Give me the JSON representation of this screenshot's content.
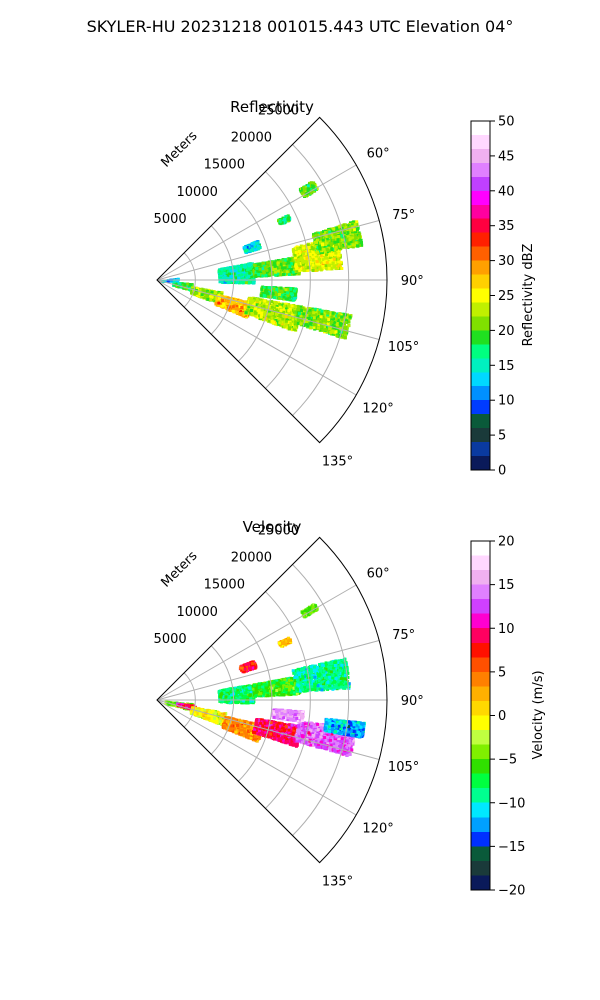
{
  "figure_title": "SKYLER-HU  20231218  001015.443 UTC Elevation 04°",
  "chart_data": [
    {
      "type": "polar-sector",
      "title": "Reflectivity",
      "radial_axis_label": "Meters",
      "radial_ticks": [
        "5000",
        "10000",
        "15000",
        "20000",
        "25000"
      ],
      "radial_tick_values": [
        5000,
        10000,
        15000,
        20000,
        25000
      ],
      "rmax": 30000,
      "theta_range_deg": [
        45,
        135
      ],
      "theta_ticks": [
        "60°",
        "75°",
        "90°",
        "105°",
        "120°",
        "135°"
      ],
      "theta_tick_values": [
        60,
        75,
        90,
        105,
        120,
        135
      ],
      "grid": true,
      "colorbar": {
        "label": "Reflectivity dBZ",
        "range": [
          0,
          50
        ],
        "ticks": [
          "0",
          "5",
          "10",
          "15",
          "20",
          "25",
          "30",
          "35",
          "40",
          "45",
          "50"
        ],
        "tick_values": [
          0,
          5,
          10,
          15,
          20,
          25,
          30,
          35,
          40,
          45,
          50
        ],
        "color_stops": [
          "#0a1a5a",
          "#0a3aa0",
          "#1a3a3a",
          "#0a5a3a",
          "#003cff",
          "#0090ff",
          "#00d8ff",
          "#00f0c0",
          "#00ff80",
          "#20e020",
          "#80e000",
          "#c0f000",
          "#ffff00",
          "#ffd000",
          "#ffa000",
          "#ff6000",
          "#ff2000",
          "#ff0040",
          "#ff00a0",
          "#ff00ff",
          "#c040ff",
          "#e080ff",
          "#f0b0f0",
          "#ffd8ff",
          "#ffffff"
        ]
      },
      "echoes": [
        {
          "theta": [
            95,
            105
          ],
          "range": [
            2000,
            4500
          ],
          "value": 18
        },
        {
          "theta": [
            83,
            89
          ],
          "range": [
            500,
            2800
          ],
          "value": 13
        },
        {
          "theta": [
            100,
            110
          ],
          "range": [
            4500,
            8500
          ],
          "value": 22
        },
        {
          "theta": [
            103,
            112
          ],
          "range": [
            8000,
            12500
          ],
          "value": 28
        },
        {
          "theta": [
            100,
            110
          ],
          "range": [
            12000,
            19000
          ],
          "value": 23
        },
        {
          "theta": [
            100,
            107
          ],
          "range": [
            18500,
            25500
          ],
          "value": 21
        },
        {
          "theta": [
            93,
            98
          ],
          "range": [
            13500,
            18000
          ],
          "value": 19
        },
        {
          "theta": [
            79,
            91
          ],
          "range": [
            8000,
            12500
          ],
          "value": 16
        },
        {
          "theta": [
            80,
            87
          ],
          "range": [
            12500,
            18500
          ],
          "value": 20
        },
        {
          "theta": [
            76,
            86
          ],
          "range": [
            18000,
            24000
          ],
          "value": 24
        },
        {
          "theta": [
            73,
            80
          ],
          "range": [
            21000,
            27000
          ],
          "value": 21
        },
        {
          "theta": [
            68,
            72
          ],
          "range": [
            12000,
            14000
          ],
          "value": 14
        },
        {
          "theta": [
            63,
            65
          ],
          "range": [
            17500,
            19000
          ],
          "value": 18
        },
        {
          "theta": [
            57,
            60
          ],
          "range": [
            22000,
            24000
          ],
          "value": 20
        }
      ]
    },
    {
      "type": "polar-sector",
      "title": "Velocity",
      "radial_axis_label": "Meters",
      "radial_ticks": [
        "5000",
        "10000",
        "15000",
        "20000",
        "25000"
      ],
      "radial_tick_values": [
        5000,
        10000,
        15000,
        20000,
        25000
      ],
      "rmax": 30000,
      "theta_range_deg": [
        45,
        135
      ],
      "theta_ticks": [
        "60°",
        "75°",
        "90°",
        "105°",
        "120°",
        "135°"
      ],
      "theta_tick_values": [
        60,
        75,
        90,
        105,
        120,
        135
      ],
      "grid": true,
      "colorbar": {
        "label": "Velocity (m/s)",
        "range": [
          -20,
          20
        ],
        "ticks": [
          "−20",
          "−15",
          "−10",
          "−5",
          "0",
          "5",
          "10",
          "15",
          "20"
        ],
        "tick_values": [
          -20,
          -15,
          -10,
          -5,
          0,
          5,
          10,
          15,
          20
        ],
        "color_stops": [
          "#0a1a5a",
          "#1a3a3a",
          "#0a5a3a",
          "#0030ff",
          "#00a0ff",
          "#00e8ff",
          "#00ff90",
          "#00ff40",
          "#30e000",
          "#80f000",
          "#c0ff40",
          "#ffff00",
          "#ffd800",
          "#ffb000",
          "#ff8000",
          "#ff5000",
          "#ff1000",
          "#ff0060",
          "#ff00d0",
          "#d040ff",
          "#e080ff",
          "#f0b0f0",
          "#ffd8ff",
          "#ffffff"
        ]
      },
      "echoes": [
        {
          "theta": [
            95,
            105
          ],
          "range": [
            1000,
            4500
          ],
          "value": -4
        },
        {
          "theta": [
            97,
            103
          ],
          "range": [
            2500,
            5000
          ],
          "value": 10
        },
        {
          "theta": [
            100,
            110
          ],
          "range": [
            4500,
            9000
          ],
          "value": -1
        },
        {
          "theta": [
            103,
            112
          ],
          "range": [
            9000,
            14000
          ],
          "value": 4
        },
        {
          "theta": [
            100,
            108
          ],
          "range": [
            13000,
            19000
          ],
          "value": 9
        },
        {
          "theta": [
            98,
            106
          ],
          "range": [
            18500,
            26000
          ],
          "value": 13
        },
        {
          "theta": [
            96,
            100
          ],
          "range": [
            22000,
            27000
          ],
          "value": -12
        },
        {
          "theta": [
            94,
            98
          ],
          "range": [
            15000,
            19000
          ],
          "value": 15
        },
        {
          "theta": [
            80,
            91
          ],
          "range": [
            8000,
            12500
          ],
          "value": -8
        },
        {
          "theta": [
            80,
            87
          ],
          "range": [
            12500,
            18500
          ],
          "value": -6
        },
        {
          "theta": [
            77,
            86
          ],
          "range": [
            18000,
            25000
          ],
          "value": -9
        },
        {
          "theta": [
            67,
            71
          ],
          "range": [
            11500,
            13500
          ],
          "value": 8
        },
        {
          "theta": [
            64,
            66
          ],
          "range": [
            17500,
            19000
          ],
          "value": 2
        },
        {
          "theta": [
            58,
            60
          ],
          "range": [
            22000,
            24000
          ],
          "value": -5
        }
      ]
    }
  ]
}
